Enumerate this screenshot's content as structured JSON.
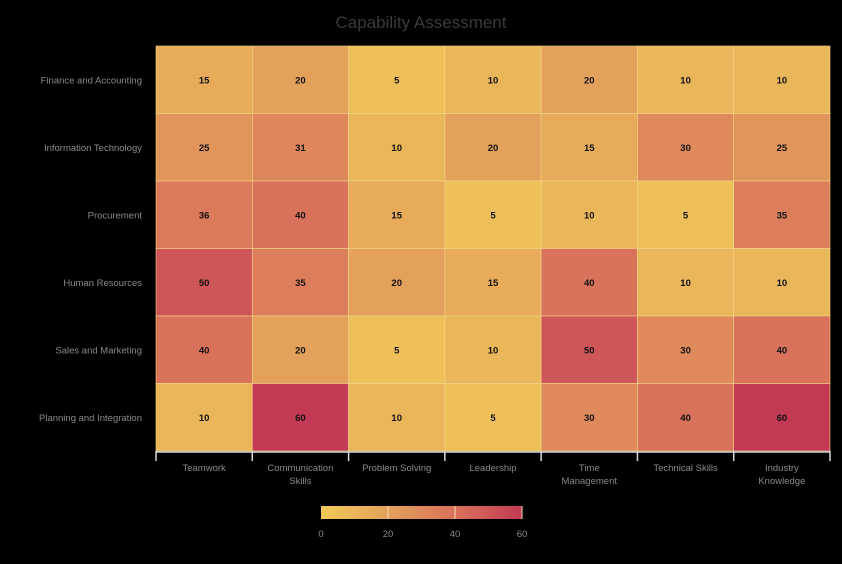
{
  "chart_data": {
    "type": "heatmap",
    "title": "Capability Assessment",
    "rows": [
      "Finance and Accounting",
      "Information Technology",
      "Procurement",
      "Human Resources",
      "Sales and Marketing",
      "Planning and Integration"
    ],
    "columns": [
      [
        "Teamwork"
      ],
      [
        "Communication",
        "Skills"
      ],
      [
        "Problem Solving"
      ],
      [
        "Leadership"
      ],
      [
        "Time",
        "Management"
      ],
      [
        "Technical Skills"
      ],
      [
        "Industry",
        "Knowledge"
      ]
    ],
    "values": [
      [
        15,
        20,
        5,
        10,
        20,
        10,
        10
      ],
      [
        25,
        31,
        10,
        20,
        15,
        30,
        25
      ],
      [
        36,
        40,
        15,
        5,
        10,
        5,
        35
      ],
      [
        50,
        35,
        20,
        15,
        40,
        10,
        10
      ],
      [
        40,
        20,
        5,
        10,
        50,
        30,
        40
      ],
      [
        10,
        60,
        10,
        5,
        30,
        40,
        60
      ]
    ],
    "colorbar": {
      "min": 0,
      "max": 60,
      "ticks": [
        0,
        20,
        40,
        60
      ]
    },
    "colors": [
      "#f1ca58",
      "#e3a15b",
      "#d9725b",
      "#c23a54"
    ]
  }
}
